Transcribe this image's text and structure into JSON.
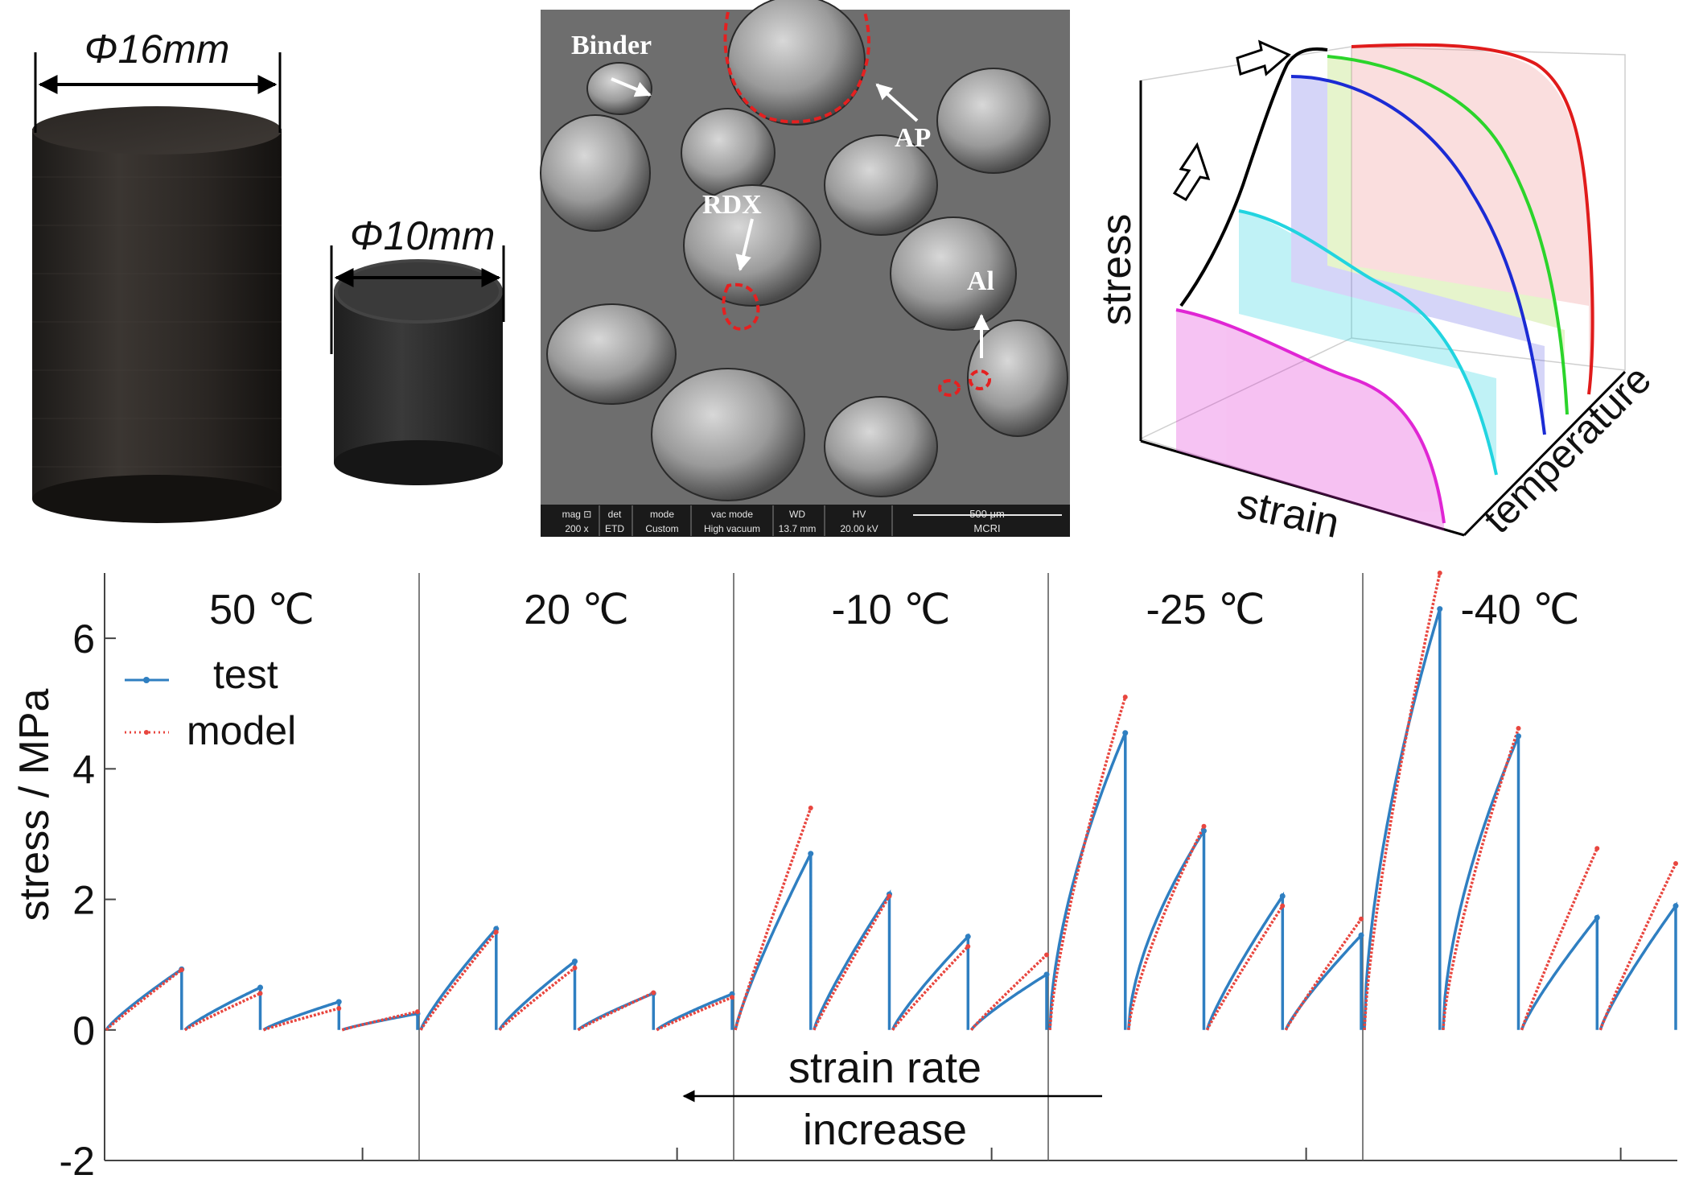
{
  "photos": {
    "large_diameter": "Φ16mm",
    "small_diameter": "Φ10mm"
  },
  "sem": {
    "labels": [
      "Binder",
      "AP",
      "RDX",
      "Al"
    ],
    "info_bar": {
      "headers": [
        "mag ⊡",
        "det",
        "mode",
        "vac mode",
        "WD",
        "HV"
      ],
      "values": [
        "200 x",
        "ETD",
        "Custom",
        "High vacuum",
        "13.7 mm",
        "20.00 kV"
      ],
      "scale_label": "500 μm",
      "org": "MCRI"
    }
  },
  "schematic": {
    "axis_stress": "stress",
    "axis_strain": "strain",
    "axis_temperature": "temperature",
    "curve_colors": [
      "#e01b1b",
      "#2bd42b",
      "#1b2bd4",
      "#22d4e0",
      "#e026d4",
      "#000000"
    ]
  },
  "colors": {
    "test": "#2f7fc1",
    "model": "#e8463f"
  },
  "chart_data": {
    "type": "line",
    "ylabel": "stress / MPa",
    "xlabel": "",
    "ylim": [
      -2,
      7
    ],
    "yticks": [
      "-2",
      "0",
      "2",
      "4",
      "6"
    ],
    "legend": [
      "test",
      "model"
    ],
    "legend_position": "top-left",
    "annotation": [
      "strain rate",
      "increase"
    ],
    "panels": [
      {
        "label": "50 ℃",
        "segments": [
          {
            "test": 0.93,
            "model": 0.92
          },
          {
            "test": 0.65,
            "model": 0.56
          },
          {
            "test": 0.43,
            "model": 0.33
          },
          {
            "test": 0.25,
            "model": 0.28
          }
        ]
      },
      {
        "label": "20 ℃",
        "segments": [
          {
            "test": 1.55,
            "model": 1.5
          },
          {
            "test": 1.05,
            "model": 0.95
          },
          {
            "test": 0.56,
            "model": 0.57
          },
          {
            "test": 0.55,
            "model": 0.5
          }
        ]
      },
      {
        "label": "-10 ℃",
        "segments": [
          {
            "test": 2.7,
            "model": 3.4
          },
          {
            "test": 2.08,
            "model": 2.05
          },
          {
            "test": 1.43,
            "model": 1.28
          },
          {
            "test": 0.85,
            "model": 1.15
          }
        ]
      },
      {
        "label": "-25 ℃",
        "segments": [
          {
            "test": 4.55,
            "model": 5.1
          },
          {
            "test": 3.05,
            "model": 3.12
          },
          {
            "test": 2.05,
            "model": 1.9
          },
          {
            "test": 1.45,
            "model": 1.7
          }
        ]
      },
      {
        "label": "-40 ℃",
        "segments": [
          {
            "test": 6.45,
            "model": 7.0
          },
          {
            "test": 4.5,
            "model": 4.62
          },
          {
            "test": 1.72,
            "model": 2.78
          },
          {
            "test": 1.9,
            "model": 2.55
          }
        ]
      }
    ]
  }
}
